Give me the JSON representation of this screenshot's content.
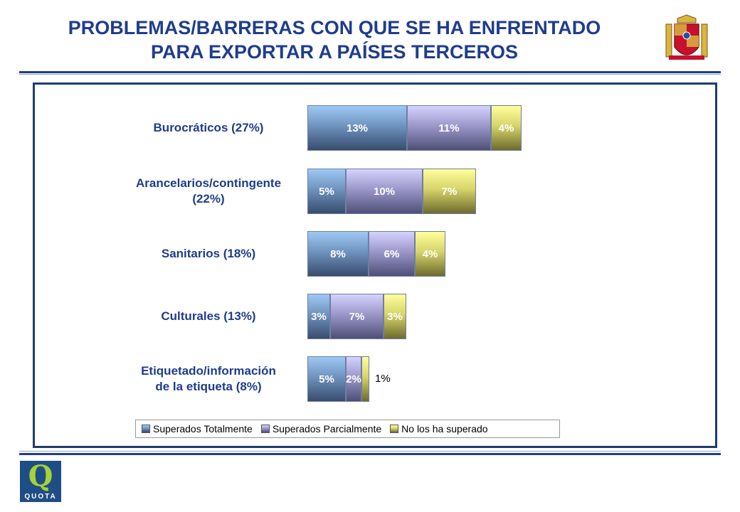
{
  "header": {
    "title_line1": "PROBLEMAS/BARRERAS CON QUE SE HA ENFRENTADO",
    "title_line2": "PARA EXPORTAR A PAÍSES TERCEROS"
  },
  "logo": {
    "letter": "Q",
    "text": "QUOTA",
    "icon": "quota-logo-icon"
  },
  "crest": {
    "icon": "spain-coat-of-arms-icon"
  },
  "colors": {
    "title": "#1f3d8c",
    "series": [
      "#6f93be",
      "#9b98c9",
      "#d6d46a"
    ]
  },
  "chart_data": {
    "type": "bar",
    "orientation": "horizontal",
    "stacked": true,
    "categories": [
      "Burocráticos (27%)",
      "Arancelarios/contingente (22%)",
      "Sanitarios (18%)",
      "Culturales (13%)",
      "Etiquetado/información de la etiqueta (8%)"
    ],
    "category_lines": [
      [
        "Burocráticos (27%)"
      ],
      [
        "Arancelarios/contingente",
        "(22%)"
      ],
      [
        "Sanitarios (18%)"
      ],
      [
        "Culturales (13%)"
      ],
      [
        "Etiquetado/información",
        "de la etiqueta (8%)"
      ]
    ],
    "series": [
      {
        "name": "Superados Totalmente",
        "values": [
          13,
          5,
          8,
          3,
          5
        ],
        "labels": [
          "13%",
          "5%",
          "8%",
          "3%",
          "5%"
        ]
      },
      {
        "name": "Superados Parcialmente",
        "values": [
          11,
          10,
          6,
          7,
          2
        ],
        "labels": [
          "11%",
          "10%",
          "6%",
          "7%",
          "2%"
        ]
      },
      {
        "name": "No los ha superado",
        "values": [
          4,
          7,
          4,
          3,
          1
        ],
        "labels": [
          "4%",
          "7%",
          "4%",
          "3%",
          "1%"
        ]
      }
    ],
    "legend": {
      "position": "bottom"
    },
    "grid": false
  }
}
